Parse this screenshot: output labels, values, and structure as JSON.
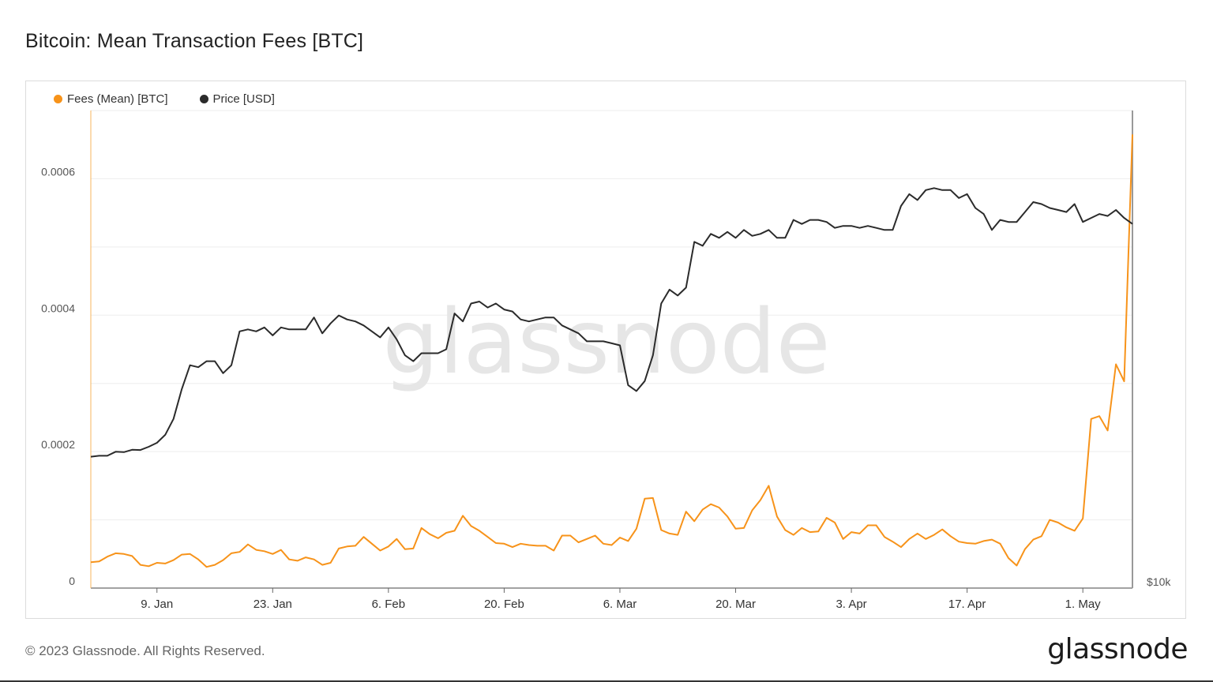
{
  "title": "Bitcoin: Mean Transaction Fees [BTC]",
  "footer": {
    "copyright": "© 2023 Glassnode. All Rights Reserved.",
    "logo": "glassnode"
  },
  "watermark": "glassnode",
  "colors": {
    "fees": "#f7931a",
    "price": "#2b2b2b",
    "grid": "#eeeeee",
    "axis_text": "#555555"
  },
  "legend": [
    {
      "label": "Fees (Mean) [BTC]",
      "color": "#f7931a"
    },
    {
      "label": "Price [USD]",
      "color": "#2b2b2b"
    }
  ],
  "chart_data": {
    "type": "line",
    "title": "Bitcoin: Mean Transaction Fees [BTC]",
    "xlabel": "",
    "ylabel": "",
    "x_start": "2023-01-01",
    "x_ticks": [
      {
        "label": "9. Jan",
        "day": 8
      },
      {
        "label": "23. Jan",
        "day": 22
      },
      {
        "label": "6. Feb",
        "day": 36
      },
      {
        "label": "20. Feb",
        "day": 50
      },
      {
        "label": "6. Mar",
        "day": 64
      },
      {
        "label": "20. Mar",
        "day": 78
      },
      {
        "label": "3. Apr",
        "day": 92
      },
      {
        "label": "17. Apr",
        "day": 106
      },
      {
        "label": "1. May",
        "day": 120
      }
    ],
    "y_left": {
      "min": 0,
      "max": 0.0007,
      "ticks": [
        0,
        0.0002,
        0.0004,
        0.0006
      ],
      "tick_labels": [
        "0",
        "0.0002",
        "0.0004",
        "0.0006"
      ]
    },
    "y_right": {
      "tick_labels": [
        "$10k"
      ]
    },
    "series": [
      {
        "name": "Fees (Mean) [BTC]",
        "axis": "left",
        "color": "#f7931a",
        "values": [
          3.8e-05,
          3.9e-05,
          4.6e-05,
          5.1e-05,
          5e-05,
          4.7e-05,
          3.4e-05,
          3.2e-05,
          3.7e-05,
          3.6e-05,
          4.1e-05,
          4.9e-05,
          5e-05,
          4.2e-05,
          3.1e-05,
          3.4e-05,
          4.1e-05,
          5.1e-05,
          5.3e-05,
          6.4e-05,
          5.6e-05,
          5.4e-05,
          5e-05,
          5.6e-05,
          4.2e-05,
          4e-05,
          4.5e-05,
          4.2e-05,
          3.4e-05,
          3.7e-05,
          5.8e-05,
          6.1e-05,
          6.2e-05,
          7.5e-05,
          6.5e-05,
          5.5e-05,
          6.1e-05,
          7.2e-05,
          5.7e-05,
          5.8e-05,
          8.8e-05,
          7.9e-05,
          7.3e-05,
          8.1e-05,
          8.4e-05,
          0.000106,
          9.1e-05,
          8.4e-05,
          7.5e-05,
          6.6e-05,
          6.5e-05,
          6e-05,
          6.5e-05,
          6.3e-05,
          6.2e-05,
          6.2e-05,
          5.5e-05,
          7.7e-05,
          7.7e-05,
          6.7e-05,
          7.2e-05,
          7.7e-05,
          6.5e-05,
          6.3e-05,
          7.4e-05,
          6.9e-05,
          8.7e-05,
          0.000131,
          0.000132,
          8.5e-05,
          8e-05,
          7.8e-05,
          0.000112,
          9.8e-05,
          0.000115,
          0.000123,
          0.000118,
          0.000105,
          8.7e-05,
          8.8e-05,
          0.000114,
          0.000129,
          0.00015,
          0.000105,
          8.5e-05,
          7.8e-05,
          8.8e-05,
          8.2e-05,
          8.3e-05,
          0.000103,
          9.6e-05,
          7.2e-05,
          8.2e-05,
          8e-05,
          9.2e-05,
          9.2e-05,
          7.5e-05,
          6.8e-05,
          6e-05,
          7.2e-05,
          8e-05,
          7.2e-05,
          7.8e-05,
          8.6e-05,
          7.6e-05,
          6.8e-05,
          6.6e-05,
          6.5e-05,
          6.9e-05,
          7.1e-05,
          6.5e-05,
          4.4e-05,
          3.3e-05,
          5.7e-05,
          7.1e-05,
          7.6e-05,
          0.0001,
          9.6e-05,
          8.9e-05,
          8.4e-05,
          0.000102,
          0.000248,
          0.000252,
          0.000231,
          0.000328,
          0.000303,
          0.000665
        ]
      },
      {
        "name": "Price [USD]",
        "axis": "right",
        "color": "#2b2b2b",
        "values": [
          16600,
          16650,
          16650,
          16850,
          16830,
          16950,
          16940,
          17100,
          17300,
          17700,
          18500,
          20000,
          21200,
          21100,
          21400,
          21400,
          20800,
          21200,
          22900,
          23000,
          22900,
          23100,
          22700,
          23100,
          23000,
          23000,
          23000,
          23600,
          22800,
          23300,
          23700,
          23500,
          23400,
          23200,
          22900,
          22600,
          23100,
          22500,
          21700,
          21400,
          21800,
          21800,
          21800,
          22000,
          23800,
          23400,
          24300,
          24400,
          24100,
          24300,
          24000,
          23900,
          23500,
          23400,
          23500,
          23600,
          23600,
          23200,
          23000,
          22800,
          22400,
          22400,
          22400,
          22300,
          22200,
          20200,
          19900,
          20400,
          21700,
          24300,
          25000,
          24700,
          25100,
          27400,
          27200,
          27800,
          27600,
          27900,
          27600,
          28000,
          27700,
          27800,
          28000,
          27600,
          27600,
          28500,
          28300,
          28500,
          28500,
          28400,
          28100,
          28200,
          28200,
          28100,
          28200,
          28100,
          28000,
          28000,
          29200,
          29800,
          29500,
          30000,
          30100,
          30000,
          30000,
          29600,
          29800,
          29100,
          28800,
          28000,
          28500,
          28400,
          28400,
          28900,
          29400,
          29300,
          29100,
          29000,
          28900,
          29300,
          28400,
          28600,
          28800,
          28700,
          29000,
          28600,
          28300
        ]
      }
    ],
    "grid": true,
    "legend_position": "top-left"
  }
}
